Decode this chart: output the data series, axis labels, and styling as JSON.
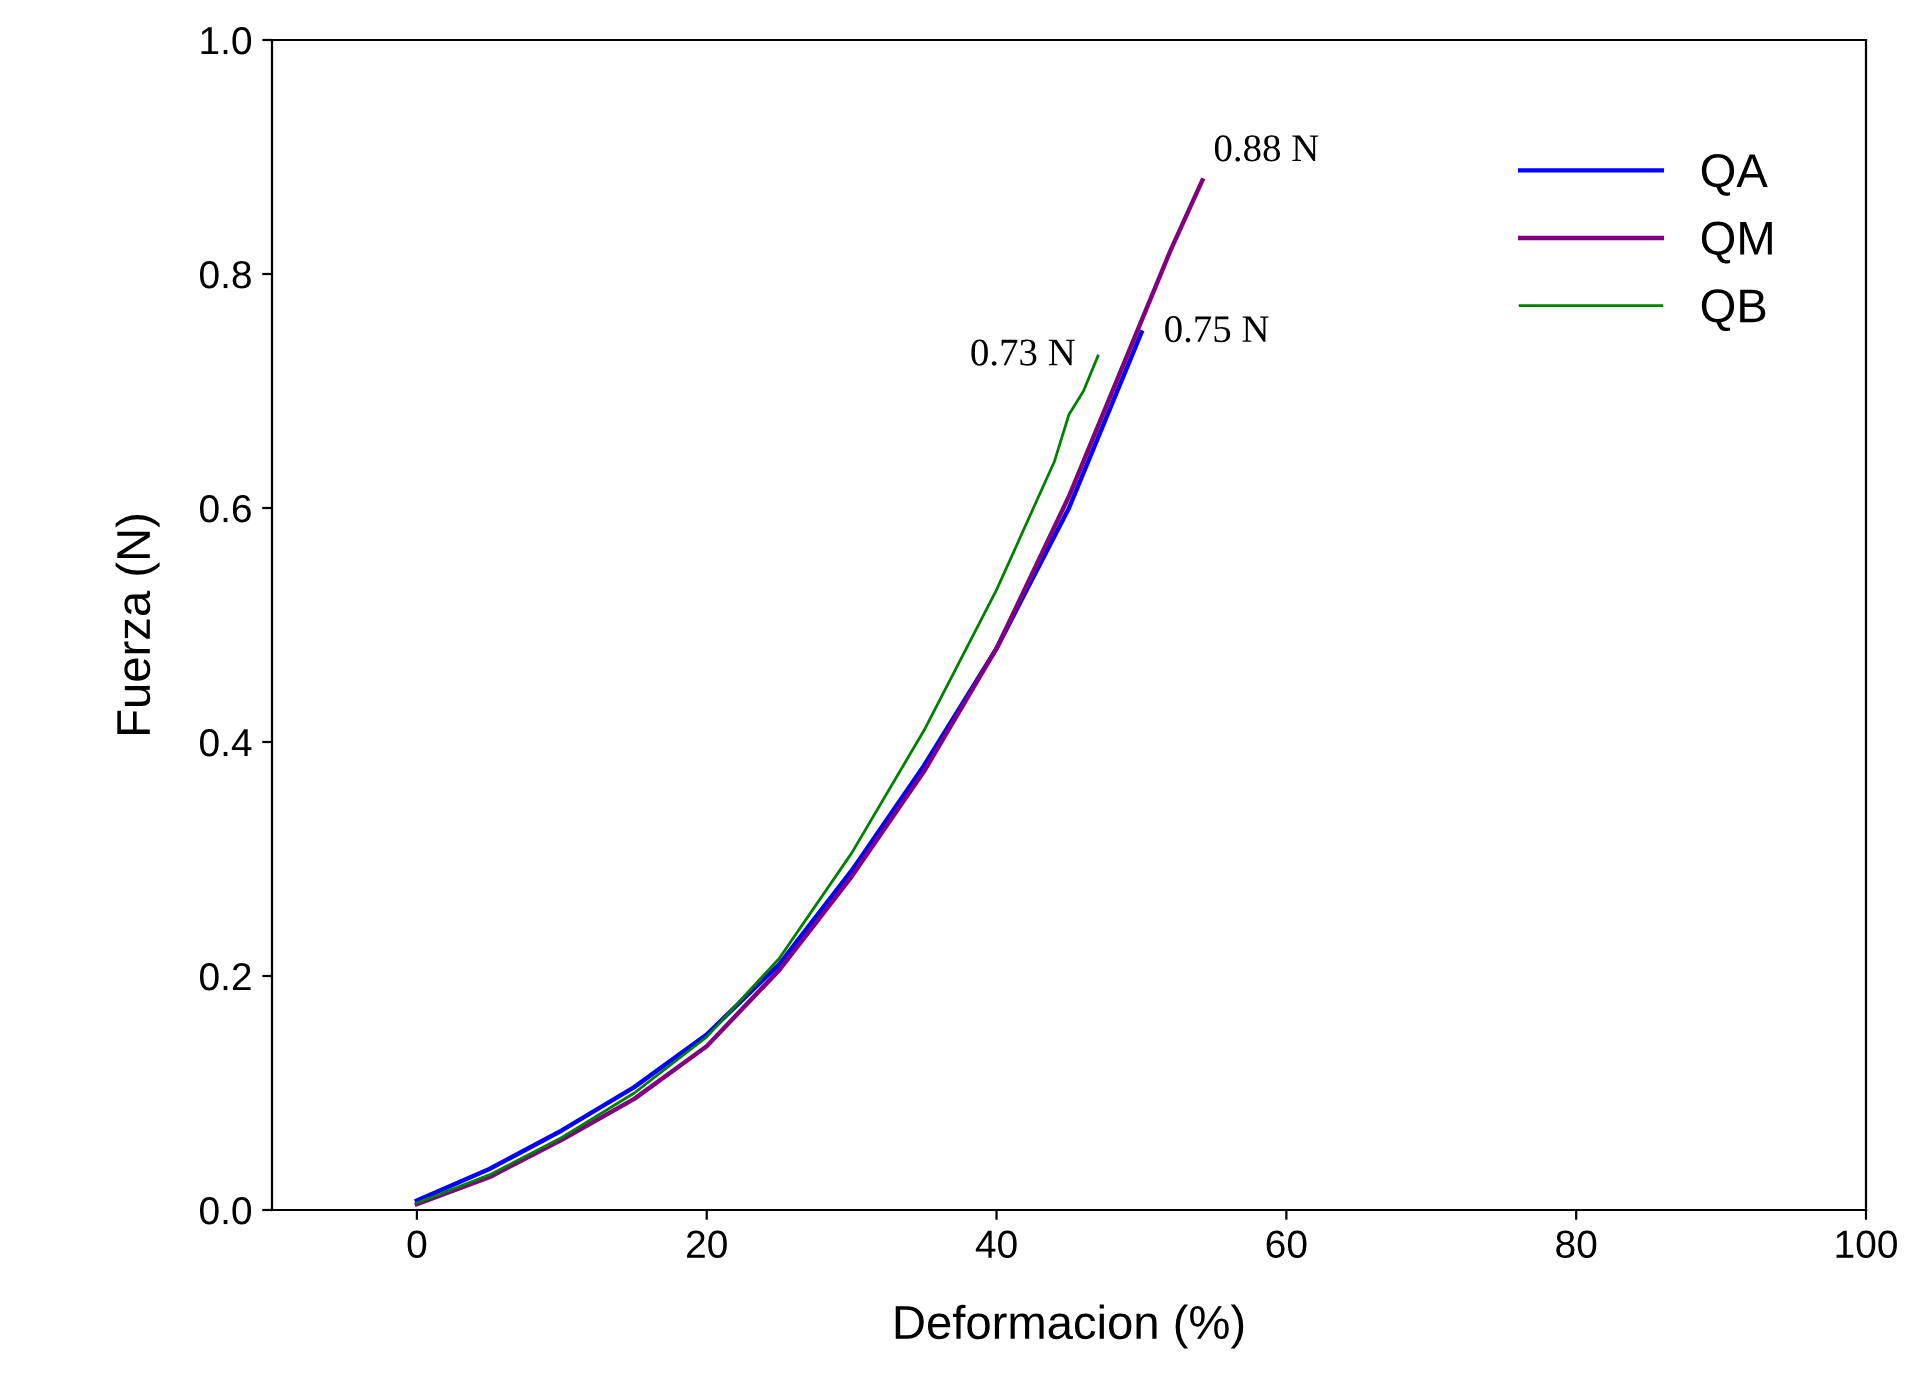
{
  "chart_data": {
    "type": "line",
    "xlabel": "Deformacion (%)",
    "ylabel": "Fuerza (N)",
    "xlim": [
      -10,
      100
    ],
    "xticks": [
      0,
      20,
      40,
      60,
      80,
      100
    ],
    "ylim": [
      0.0,
      1.0
    ],
    "yticks": [
      {
        "value": 0,
        "label": "0.0"
      },
      0.2,
      0.4,
      0.6,
      0.8,
      {
        "value": 1,
        "label": "1.0"
      }
    ],
    "grid": false,
    "legend": "top right",
    "marker": "none",
    "line_style": "solid",
    "series": [
      {
        "name": "QA",
        "color": "#0000ff",
        "x": [
          0,
          5,
          10,
          15,
          20,
          25,
          30,
          35,
          40,
          45,
          50
        ],
        "values": [
          0.008,
          0.035,
          0.068,
          0.105,
          0.15,
          0.21,
          0.29,
          0.38,
          0.48,
          0.6,
          0.75
        ]
      },
      {
        "name": "QM",
        "color": "#800080",
        "x": [
          0,
          5,
          10,
          15,
          20,
          25,
          30,
          35,
          40,
          45,
          50,
          52,
          54.2
        ],
        "values": [
          0.005,
          0.028,
          0.06,
          0.095,
          0.14,
          0.205,
          0.285,
          0.375,
          0.48,
          0.61,
          0.76,
          0.82,
          0.88
        ]
      },
      {
        "name": "QB",
        "color": "#008000",
        "x": [
          0,
          5,
          10,
          15,
          20,
          25,
          30,
          35,
          40,
          44,
          45,
          46,
          47
        ],
        "values": [
          0.006,
          0.03,
          0.062,
          0.1,
          0.148,
          0.215,
          0.305,
          0.41,
          0.53,
          0.64,
          0.68,
          0.7,
          0.73
        ]
      }
    ],
    "annotations": [
      {
        "text": "0.88 N",
        "x": 54.2,
        "y": 0.88
      },
      {
        "text": "0.75 N",
        "x": 50,
        "y": 0.75
      },
      {
        "text": "0.73 N",
        "x": 47,
        "y": 0.73
      }
    ]
  }
}
